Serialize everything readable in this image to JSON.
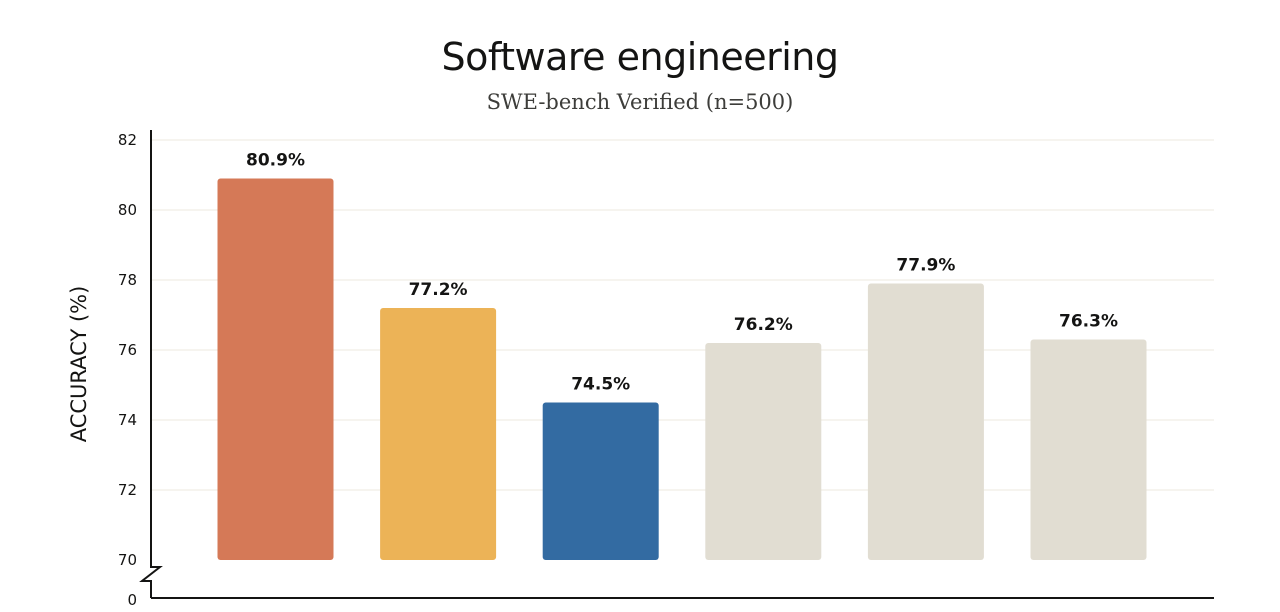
{
  "chart_data": {
    "type": "bar",
    "title": "Software engineering",
    "subtitle": "SWE-bench Verified (n=500)",
    "xlabel": "",
    "ylabel": "ACCURACY (%)",
    "ylim": [
      70,
      82
    ],
    "y_ticks": [
      "82",
      "80",
      "78",
      "76",
      "74",
      "72",
      "70"
    ],
    "y_tick_values": [
      82,
      80,
      78,
      76,
      74,
      72,
      70
    ],
    "y_break_label": "0",
    "grid": true,
    "categories": [
      "",
      "",
      "",
      "",
      "",
      ""
    ],
    "values": [
      80.9,
      77.2,
      74.5,
      76.2,
      77.9,
      76.3
    ],
    "value_labels": [
      "80.9%",
      "77.2%",
      "74.5%",
      "76.2%",
      "77.9%",
      "76.3%"
    ],
    "colors": [
      "#d57957",
      "#ecb357",
      "#336ba2",
      "#e1ddd2",
      "#e1ddd2",
      "#e1ddd2"
    ]
  }
}
